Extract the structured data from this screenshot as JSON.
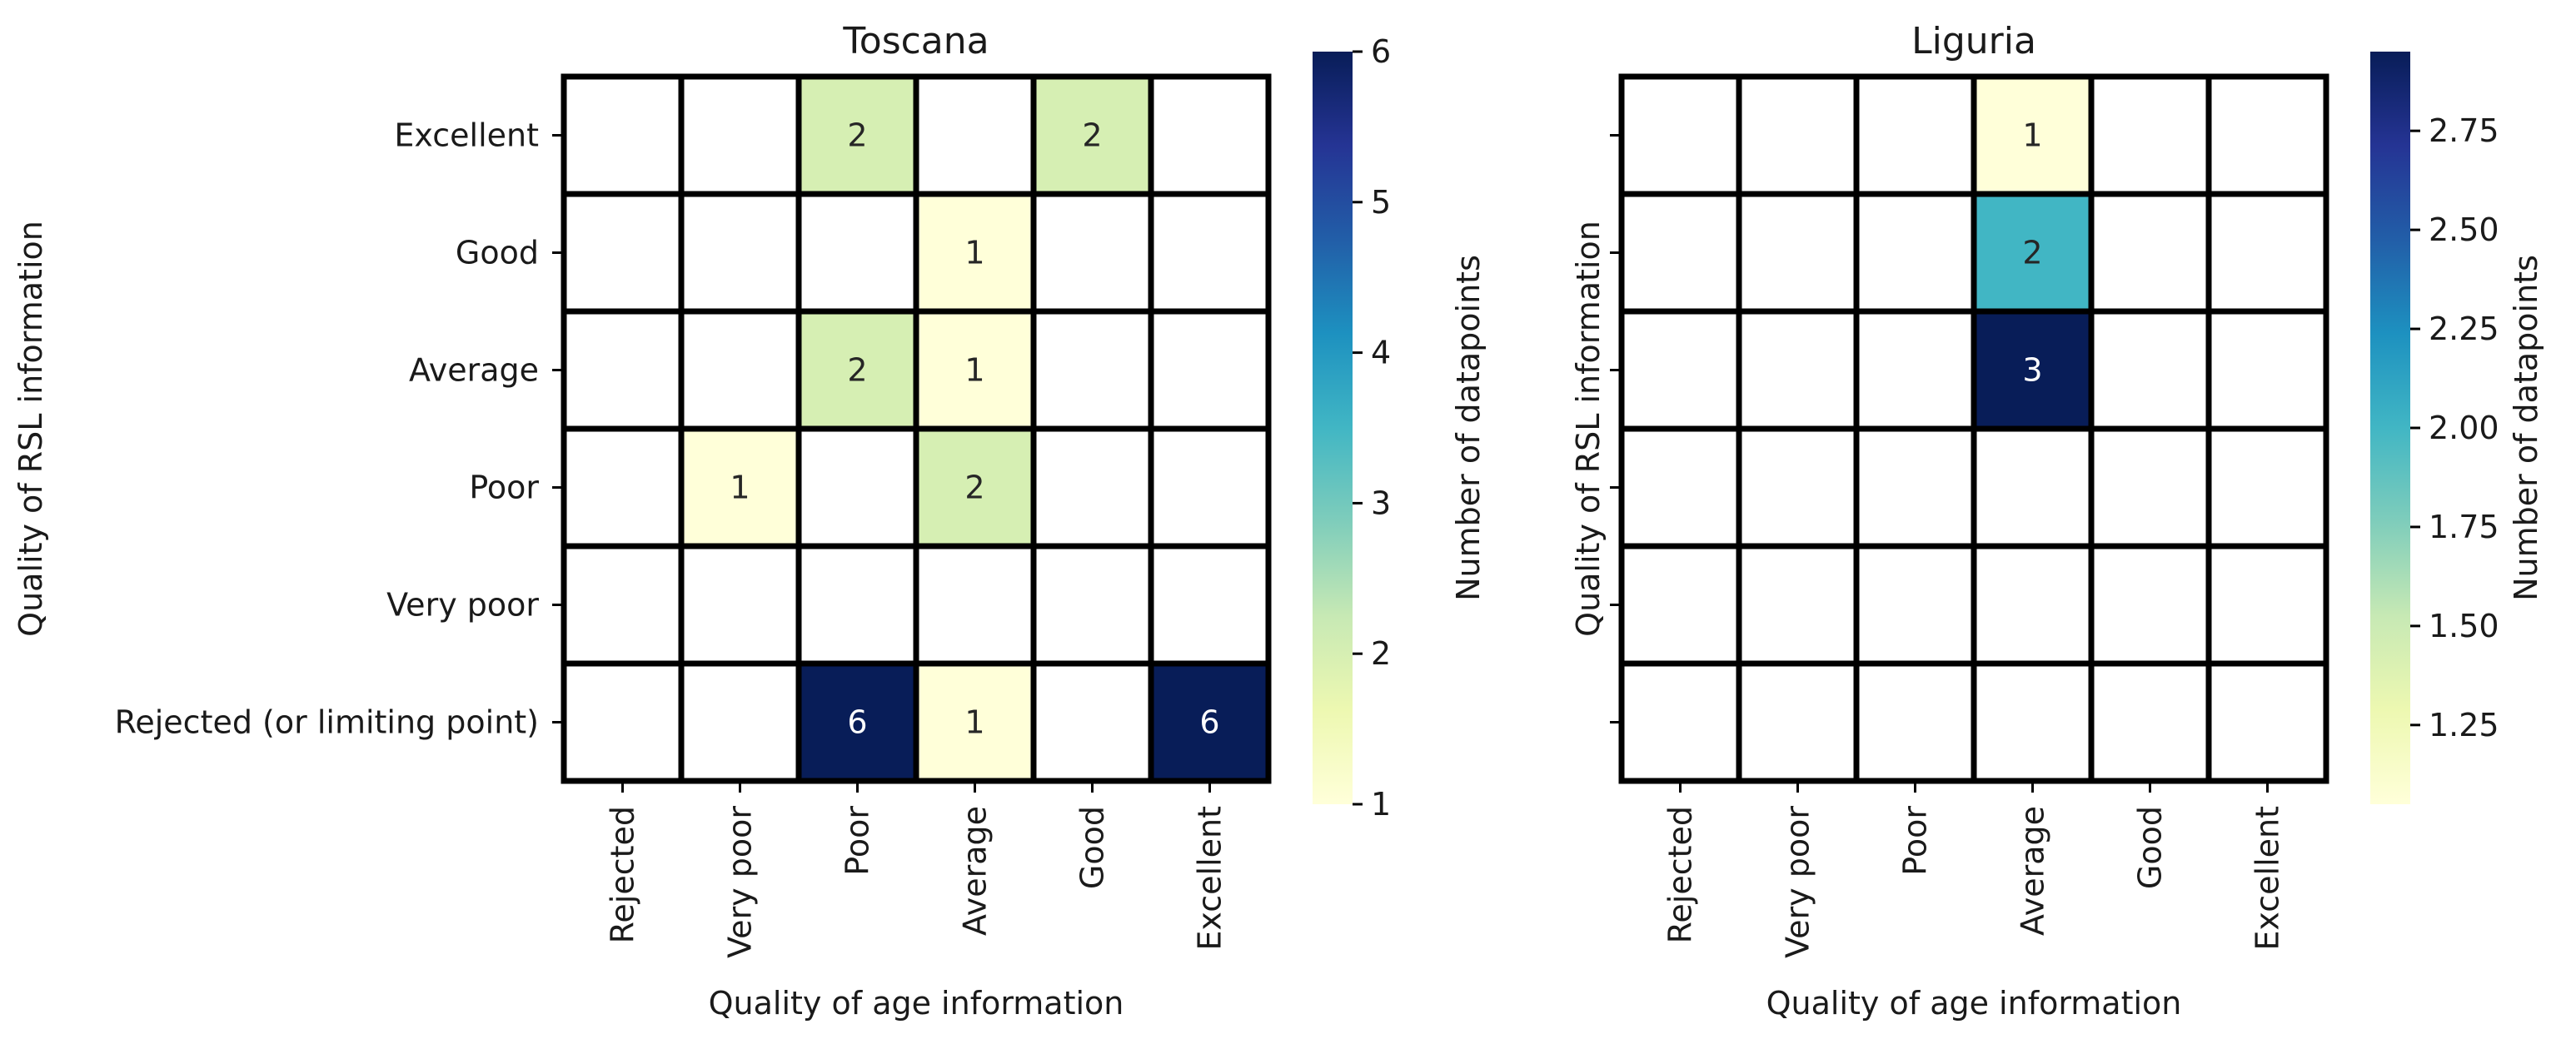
{
  "colorbar_label": "Number of datapoints",
  "colormap": [
    "#ffffd9",
    "#edf8b1",
    "#c7e9b4",
    "#7fcdbb",
    "#41b6c4",
    "#1d91c0",
    "#225ea8",
    "#253494",
    "#081d58"
  ],
  "cell_border_color": "#000000",
  "empty_cell_color": "#ffffff",
  "chart_data": [
    {
      "type": "heatmap",
      "title": "Toscana",
      "xlabel": "Quality of age information",
      "ylabel": "Quality of RSL information",
      "x_tick_labels": [
        "Rejected",
        "Very poor",
        "Poor",
        "Average",
        "Good",
        "Excellent"
      ],
      "y_tick_labels": [
        "Excellent",
        "Good",
        "Average",
        "Poor",
        "Very poor",
        "Rejected (or limiting point)"
      ],
      "values": [
        [
          null,
          null,
          2,
          null,
          2,
          null
        ],
        [
          null,
          null,
          null,
          1,
          null,
          null
        ],
        [
          null,
          null,
          2,
          1,
          null,
          null
        ],
        [
          null,
          1,
          null,
          2,
          null,
          null
        ],
        [
          null,
          null,
          null,
          null,
          null,
          null
        ],
        [
          null,
          null,
          6,
          1,
          null,
          6
        ]
      ],
      "colorbar": {
        "range": [
          1,
          6
        ],
        "ticks": [
          "1",
          "2",
          "3",
          "4",
          "5",
          "6"
        ]
      }
    },
    {
      "type": "heatmap",
      "title": "Liguria",
      "xlabel": "Quality of age information",
      "ylabel": "Quality of RSL information",
      "x_tick_labels": [
        "Rejected",
        "Very poor",
        "Poor",
        "Average",
        "Good",
        "Excellent"
      ],
      "y_tick_labels": [],
      "values": [
        [
          null,
          null,
          null,
          1,
          null,
          null
        ],
        [
          null,
          null,
          null,
          2,
          null,
          null
        ],
        [
          null,
          null,
          null,
          3,
          null,
          null
        ],
        [
          null,
          null,
          null,
          null,
          null,
          null
        ],
        [
          null,
          null,
          null,
          null,
          null,
          null
        ],
        [
          null,
          null,
          null,
          null,
          null,
          null
        ]
      ],
      "colorbar": {
        "range": [
          1.05,
          2.95
        ],
        "ticks": [
          "1.25",
          "1.50",
          "1.75",
          "2.00",
          "2.25",
          "2.50",
          "2.75"
        ]
      }
    }
  ]
}
